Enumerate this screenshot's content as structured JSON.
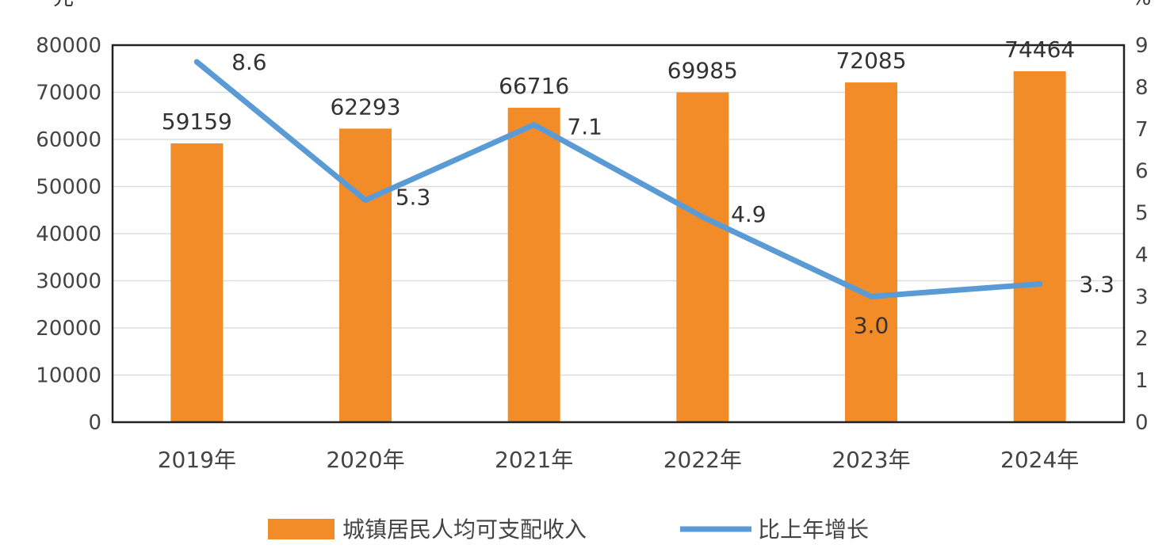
{
  "left_unit": "元",
  "right_unit": "%",
  "chart_data": {
    "type": "bar",
    "categories": [
      "2019年",
      "2020年",
      "2021年",
      "2022年",
      "2023年",
      "2024年"
    ],
    "series": [
      {
        "name": "城镇居民人均可支配收入",
        "kind": "bar",
        "axis": "left",
        "values": [
          59159,
          62293,
          66716,
          69985,
          72085,
          74464
        ]
      },
      {
        "name": "比上年增长",
        "kind": "line",
        "axis": "right",
        "values": [
          8.6,
          5.3,
          7.1,
          4.9,
          3.0,
          3.3
        ]
      }
    ],
    "bar_labels": [
      "59159",
      "62293",
      "66716",
      "69985",
      "72085",
      "74464"
    ],
    "line_labels": [
      "8.6",
      "5.3",
      "7.1",
      "4.9",
      "3.0",
      "3.3"
    ],
    "y_left": {
      "min": 0,
      "max": 80000,
      "step": 10000,
      "ticks": [
        "0",
        "10000",
        "20000",
        "30000",
        "40000",
        "50000",
        "60000",
        "70000",
        "80000"
      ]
    },
    "y_right": {
      "min": 0,
      "max": 9,
      "step": 1,
      "ticks": [
        "0",
        "1",
        "2",
        "3",
        "4",
        "5",
        "6",
        "7",
        "8",
        "9"
      ]
    },
    "grid": true,
    "legend_position": "bottom",
    "colors": {
      "bar": "#F28C28",
      "line": "#5B9BD5"
    }
  }
}
